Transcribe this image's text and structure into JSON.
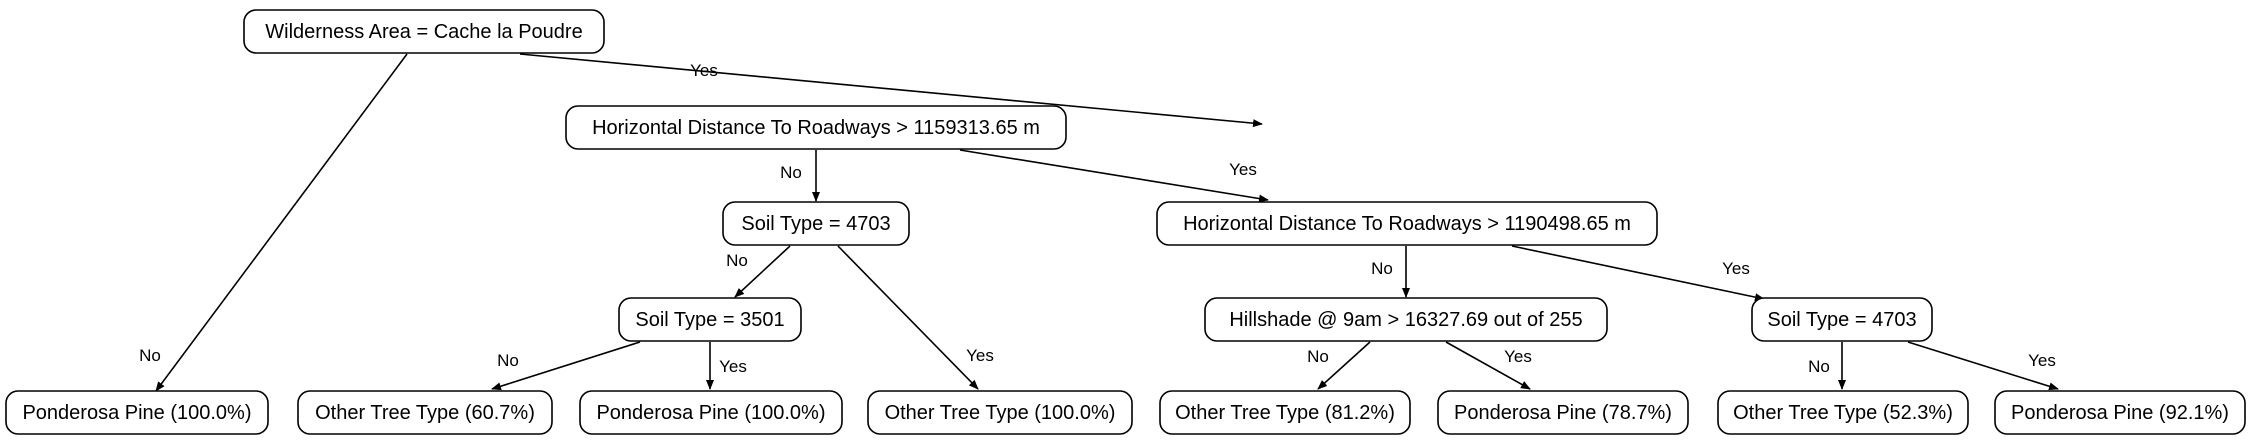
{
  "tree": {
    "nodes": {
      "root": "Wilderness Area = Cache la Poudre",
      "hdist1": "Horizontal Distance To Roadways > 1159313.65 m",
      "soil4703a": "Soil Type = 4703",
      "hdist2": "Horizontal Distance To Roadways > 1190498.65 m",
      "soil3501": "Soil Type = 3501",
      "hill": "Hillshade @ 9am > 16327.69 out of 255",
      "soil4703b": "Soil Type = 4703",
      "leaf1": "Ponderosa Pine (100.0%)",
      "leaf2": "Other Tree Type (60.7%)",
      "leaf3": "Ponderosa Pine (100.0%)",
      "leaf4": "Other Tree Type (100.0%)",
      "leaf5": "Other Tree Type (81.2%)",
      "leaf6": "Ponderosa Pine (78.7%)",
      "leaf7": "Other Tree Type (52.3%)",
      "leaf8": "Ponderosa Pine (92.1%)"
    },
    "edges": [
      {
        "from": "root",
        "to": "hdist1",
        "label": "Yes"
      },
      {
        "from": "root",
        "to": "leaf1",
        "label": "No"
      },
      {
        "from": "hdist1",
        "to": "soil4703a",
        "label": "No"
      },
      {
        "from": "hdist1",
        "to": "hdist2",
        "label": "Yes"
      },
      {
        "from": "soil4703a",
        "to": "soil3501",
        "label": "No"
      },
      {
        "from": "soil4703a",
        "to": "leaf4",
        "label": "Yes"
      },
      {
        "from": "soil3501",
        "to": "leaf2",
        "label": "No"
      },
      {
        "from": "soil3501",
        "to": "leaf3",
        "label": "Yes"
      },
      {
        "from": "hdist2",
        "to": "hill",
        "label": "No"
      },
      {
        "from": "hdist2",
        "to": "soil4703b",
        "label": "Yes"
      },
      {
        "from": "hill",
        "to": "leaf5",
        "label": "No"
      },
      {
        "from": "hill",
        "to": "leaf6",
        "label": "Yes"
      },
      {
        "from": "soil4703b",
        "to": "leaf7",
        "label": "No"
      },
      {
        "from": "soil4703b",
        "to": "leaf8",
        "label": "Yes"
      }
    ]
  }
}
